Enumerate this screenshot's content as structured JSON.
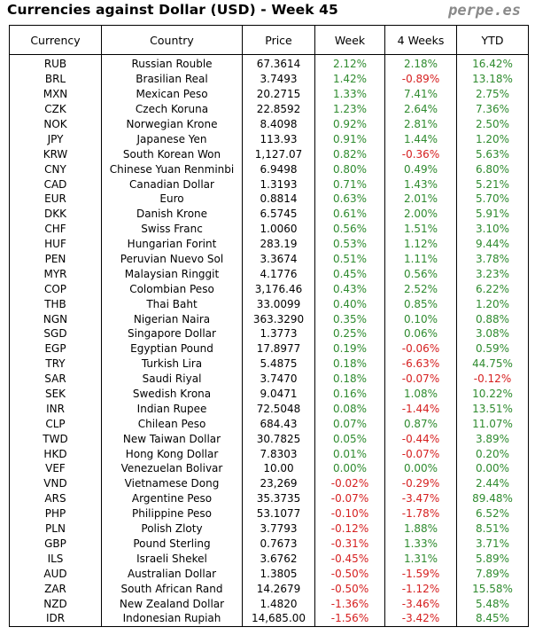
{
  "header": {
    "title": "Currencies against Dollar (USD) - Week 45",
    "brand": "perpe.es"
  },
  "colors": {
    "positive": "#2f8b2f",
    "negative": "#d62020"
  },
  "table": {
    "columns": [
      "Currency",
      "Country",
      "Price",
      "Week",
      "4 Weeks",
      "YTD"
    ],
    "rows": [
      [
        "RUB",
        "Russian Rouble",
        "67.3614",
        "2.12%",
        "2.18%",
        "16.42%"
      ],
      [
        "BRL",
        "Brasilian Real",
        "3.7493",
        "1.42%",
        "-0.89%",
        "13.18%"
      ],
      [
        "MXN",
        "Mexican Peso",
        "20.2715",
        "1.33%",
        "7.41%",
        "2.75%"
      ],
      [
        "CZK",
        "Czech Koruna",
        "22.8592",
        "1.23%",
        "2.64%",
        "7.36%"
      ],
      [
        "NOK",
        "Norwegian Krone",
        "8.4098",
        "0.92%",
        "2.81%",
        "2.50%"
      ],
      [
        "JPY",
        "Japanese Yen",
        "113.93",
        "0.91%",
        "1.44%",
        "1.20%"
      ],
      [
        "KRW",
        "South Korean Won",
        "1,127.07",
        "0.82%",
        "-0.36%",
        "5.63%"
      ],
      [
        "CNY",
        "Chinese Yuan Renminbi",
        "6.9498",
        "0.80%",
        "0.49%",
        "6.80%"
      ],
      [
        "CAD",
        "Canadian Dollar",
        "1.3193",
        "0.71%",
        "1.43%",
        "5.21%"
      ],
      [
        "EUR",
        "Euro",
        "0.8814",
        "0.63%",
        "2.01%",
        "5.70%"
      ],
      [
        "DKK",
        "Danish Krone",
        "6.5745",
        "0.61%",
        "2.00%",
        "5.91%"
      ],
      [
        "CHF",
        "Swiss Franc",
        "1.0060",
        "0.56%",
        "1.51%",
        "3.10%"
      ],
      [
        "HUF",
        "Hungarian Forint",
        "283.19",
        "0.53%",
        "1.12%",
        "9.44%"
      ],
      [
        "PEN",
        "Peruvian Nuevo Sol",
        "3.3674",
        "0.51%",
        "1.11%",
        "3.78%"
      ],
      [
        "MYR",
        "Malaysian Ringgit",
        "4.1776",
        "0.45%",
        "0.56%",
        "3.23%"
      ],
      [
        "COP",
        "Colombian Peso",
        "3,176.46",
        "0.43%",
        "2.52%",
        "6.22%"
      ],
      [
        "THB",
        "Thai Baht",
        "33.0099",
        "0.40%",
        "0.85%",
        "1.20%"
      ],
      [
        "NGN",
        "Nigerian Naira",
        "363.3290",
        "0.35%",
        "0.10%",
        "0.88%"
      ],
      [
        "SGD",
        "Singapore Dollar",
        "1.3773",
        "0.25%",
        "0.06%",
        "3.08%"
      ],
      [
        "EGP",
        "Egyptian Pound",
        "17.8977",
        "0.19%",
        "-0.06%",
        "0.59%"
      ],
      [
        "TRY",
        "Turkish Lira",
        "5.4875",
        "0.18%",
        "-6.63%",
        "44.75%"
      ],
      [
        "SAR",
        "Saudi Riyal",
        "3.7470",
        "0.18%",
        "-0.07%",
        "-0.12%"
      ],
      [
        "SEK",
        "Swedish Krona",
        "9.0471",
        "0.16%",
        "1.08%",
        "10.22%"
      ],
      [
        "INR",
        "Indian Rupee",
        "72.5048",
        "0.08%",
        "-1.44%",
        "13.51%"
      ],
      [
        "CLP",
        "Chilean Peso",
        "684.43",
        "0.07%",
        "0.87%",
        "11.07%"
      ],
      [
        "TWD",
        "New Taiwan Dollar",
        "30.7825",
        "0.05%",
        "-0.44%",
        "3.89%"
      ],
      [
        "HKD",
        "Hong Kong Dollar",
        "7.8303",
        "0.01%",
        "-0.07%",
        "0.20%"
      ],
      [
        "VEF",
        "Venezuelan Bolivar",
        "10.00",
        "0.00%",
        "0.00%",
        "0.00%"
      ],
      [
        "VND",
        "Vietnamese Dong",
        "23,269",
        "-0.02%",
        "-0.29%",
        "2.44%"
      ],
      [
        "ARS",
        "Argentine Peso",
        "35.3735",
        "-0.07%",
        "-3.47%",
        "89.48%"
      ],
      [
        "PHP",
        "Philippine Peso",
        "53.1077",
        "-0.10%",
        "-1.78%",
        "6.52%"
      ],
      [
        "PLN",
        "Polish Zloty",
        "3.7793",
        "-0.12%",
        "1.88%",
        "8.51%"
      ],
      [
        "GBP",
        "Pound Sterling",
        "0.7673",
        "-0.31%",
        "1.33%",
        "3.71%"
      ],
      [
        "ILS",
        "Israeli Shekel",
        "3.6762",
        "-0.45%",
        "1.31%",
        "5.89%"
      ],
      [
        "AUD",
        "Australian Dollar",
        "1.3805",
        "-0.50%",
        "-1.59%",
        "7.89%"
      ],
      [
        "ZAR",
        "South African Rand",
        "14.2679",
        "-0.50%",
        "-1.12%",
        "15.58%"
      ],
      [
        "NZD",
        "New Zealand Dollar",
        "1.4820",
        "-1.36%",
        "-3.46%",
        "5.48%"
      ],
      [
        "IDR",
        "Indonesian Rupiah",
        "14,685.00",
        "-1.56%",
        "-3.42%",
        "8.45%"
      ]
    ]
  }
}
